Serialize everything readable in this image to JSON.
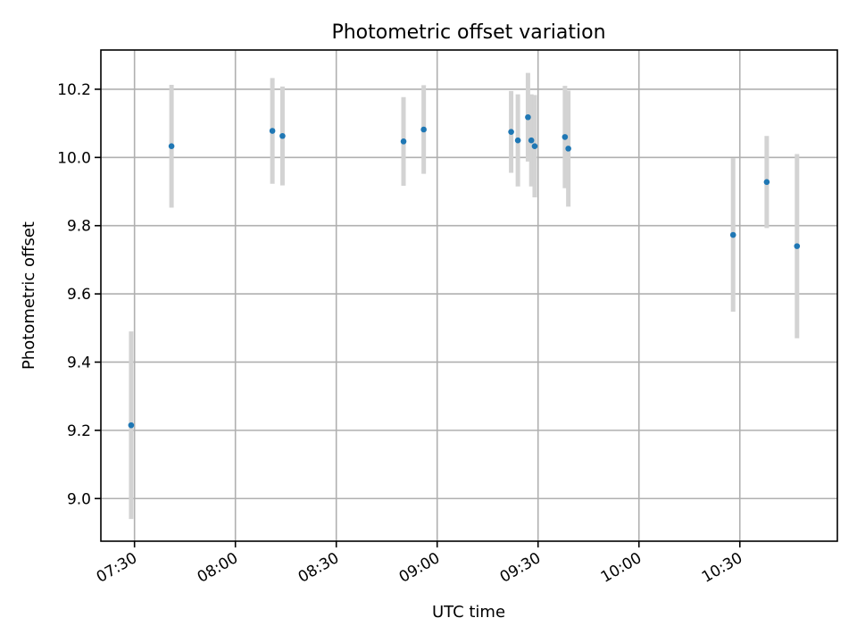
{
  "chart_data": {
    "type": "scatter",
    "title": "Photometric offset variation",
    "xlabel": "UTC time",
    "ylabel": "Photometric offset",
    "x_axis_kind": "time",
    "xlim": [
      "07:20",
      "10:59"
    ],
    "ylim": [
      8.875,
      10.315
    ],
    "x_ticks": [
      "07:30",
      "08:00",
      "08:30",
      "09:00",
      "09:30",
      "10:00",
      "10:30"
    ],
    "y_ticks": [
      "9.0",
      "9.2",
      "9.4",
      "9.6",
      "9.8",
      "10.0",
      "10.2"
    ],
    "grid": true,
    "marker_color": "#1f77b4",
    "errorbar_color": "#d3d3d3",
    "points": [
      {
        "x": "07:29",
        "y": 9.215,
        "err": 0.275
      },
      {
        "x": "07:41",
        "y": 10.033,
        "err": 0.18
      },
      {
        "x": "08:11",
        "y": 10.078,
        "err": 0.155
      },
      {
        "x": "08:14",
        "y": 10.063,
        "err": 0.145
      },
      {
        "x": "08:50",
        "y": 10.047,
        "err": 0.13
      },
      {
        "x": "08:56",
        "y": 10.082,
        "err": 0.13
      },
      {
        "x": "09:22",
        "y": 10.075,
        "err": 0.12
      },
      {
        "x": "09:24",
        "y": 10.05,
        "err": 0.135
      },
      {
        "x": "09:27",
        "y": 10.118,
        "err": 0.13
      },
      {
        "x": "09:28",
        "y": 10.05,
        "err": 0.135
      },
      {
        "x": "09:29",
        "y": 10.033,
        "err": 0.15
      },
      {
        "x": "09:38",
        "y": 10.06,
        "err": 0.15
      },
      {
        "x": "09:39",
        "y": 10.026,
        "err": 0.17
      },
      {
        "x": "10:28",
        "y": 9.773,
        "err": 0.225
      },
      {
        "x": "10:38",
        "y": 9.928,
        "err": 0.135
      },
      {
        "x": "10:47",
        "y": 9.74,
        "err": 0.27
      }
    ]
  }
}
